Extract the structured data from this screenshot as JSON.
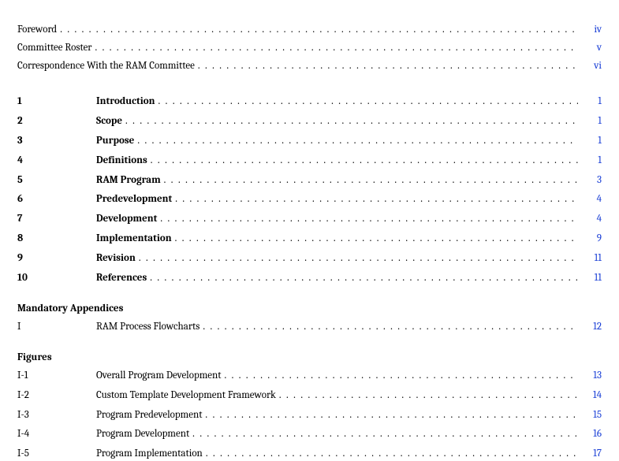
{
  "colors": {
    "page_link": "#1a3fd6",
    "text": "#000000",
    "background": "#ffffff"
  },
  "typography": {
    "family": "Cambria/Georgia serif",
    "size_pt": 10
  },
  "frontmatter": [
    {
      "title": "Foreword",
      "page": "iv"
    },
    {
      "title": "Committee Roster",
      "page": "v"
    },
    {
      "title": "Correspondence With the RAM Committee",
      "page": "vi"
    }
  ],
  "chapters": [
    {
      "num": "1",
      "title": "Introduction",
      "page": "1"
    },
    {
      "num": "2",
      "title": "Scope",
      "page": "1"
    },
    {
      "num": "3",
      "title": "Purpose",
      "page": "1"
    },
    {
      "num": "4",
      "title": "Definitions",
      "page": "1"
    },
    {
      "num": "5",
      "title": "RAM Program",
      "page": "3"
    },
    {
      "num": "6",
      "title": "Predevelopment",
      "page": "4"
    },
    {
      "num": "7",
      "title": "Development",
      "page": "4"
    },
    {
      "num": "8",
      "title": "Implementation",
      "page": "9"
    },
    {
      "num": "9",
      "title": "Revision",
      "page": "11"
    },
    {
      "num": "10",
      "title": "References",
      "page": "11"
    }
  ],
  "appendices_header": "Mandatory Appendices",
  "appendices": [
    {
      "num": "I",
      "title": "RAM Process Flowcharts",
      "page": "12"
    }
  ],
  "figures_header": "Figures",
  "figures": [
    {
      "num": "I-1",
      "title": "Overall Program Development",
      "page": "13"
    },
    {
      "num": "I-2",
      "title": "Custom Template Development Framework",
      "page": "14"
    },
    {
      "num": "I-3",
      "title": "Program Predevelopment",
      "page": "15"
    },
    {
      "num": "I-4",
      "title": "Program Development",
      "page": "16"
    },
    {
      "num": "I-5",
      "title": "Program Implementation",
      "page": "17"
    }
  ]
}
